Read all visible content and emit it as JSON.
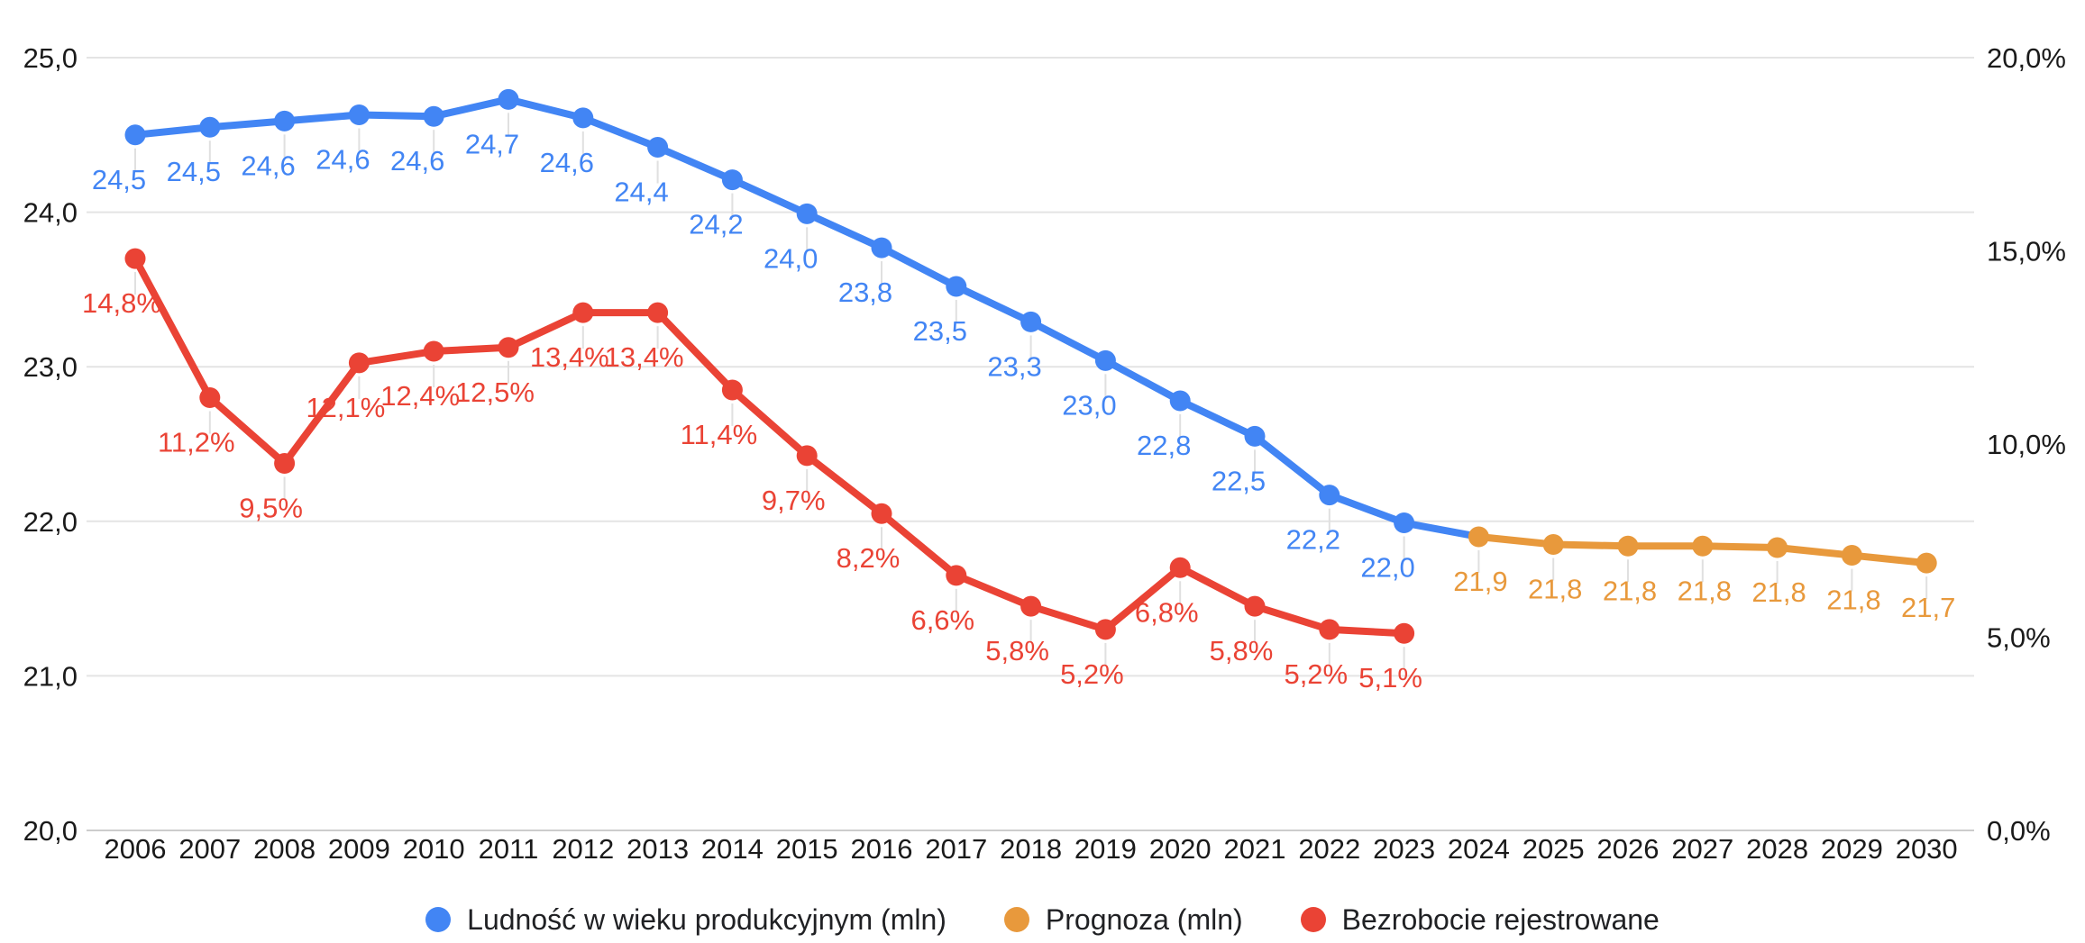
{
  "chart_data": {
    "type": "line",
    "title": "",
    "x_categories": [
      2006,
      2007,
      2008,
      2009,
      2010,
      2011,
      2012,
      2013,
      2014,
      2015,
      2016,
      2017,
      2018,
      2019,
      2020,
      2021,
      2022,
      2023,
      2024,
      2025,
      2026,
      2027,
      2028,
      2029,
      2030
    ],
    "axes": {
      "left": {
        "min": 20,
        "max": 25,
        "tick_values": [
          25,
          24,
          23,
          22,
          21,
          20
        ],
        "tick_labels": [
          "25,0",
          "24,0",
          "23,0",
          "22,0",
          "21,0",
          "20,0"
        ]
      },
      "right": {
        "min": 0,
        "max": 20,
        "tick_values": [
          20,
          15,
          10,
          5,
          0
        ],
        "tick_labels": [
          "20,0%",
          "15,0%",
          "10,0%",
          "5,0%",
          "0,0%"
        ]
      }
    },
    "grid": {
      "horizontal": true,
      "vertical": false
    },
    "legend_position": "bottom",
    "series": [
      {
        "id": "ludnosc",
        "name": "Ludność w wieku produkcyjnym (mln)",
        "color": "#4285F4",
        "axis": "left",
        "start_year": 2006,
        "values": [
          24.5,
          24.5,
          24.6,
          24.6,
          24.6,
          24.7,
          24.6,
          24.4,
          24.2,
          24.0,
          23.8,
          23.5,
          23.3,
          23.0,
          22.8,
          22.5,
          22.2,
          22.0
        ],
        "values_precise": [
          24.5,
          24.55,
          24.59,
          24.63,
          24.62,
          24.73,
          24.61,
          24.42,
          24.21,
          23.99,
          23.77,
          23.52,
          23.29,
          23.04,
          22.78,
          22.55,
          22.17,
          21.99
        ],
        "labels": [
          "24,5",
          "24,5",
          "24,6",
          "24,6",
          "24,6",
          "24,7",
          "24,6",
          "24,4",
          "24,2",
          "24,0",
          "23,8",
          "23,5",
          "23,3",
          "23,0",
          "22,8",
          "22,5",
          "22,2",
          "22,0"
        ],
        "connects_to_next_series": true
      },
      {
        "id": "prognoza",
        "name": "Prognoza (mln)",
        "color": "#E8993C",
        "axis": "left",
        "start_year": 2024,
        "values": [
          21.9,
          21.8,
          21.8,
          21.8,
          21.8,
          21.8,
          21.7
        ],
        "values_precise": [
          21.9,
          21.85,
          21.84,
          21.84,
          21.83,
          21.78,
          21.73
        ],
        "labels": [
          "21,9",
          "21,8",
          "21,8",
          "21,8",
          "21,8",
          "21,8",
          "21,7"
        ]
      },
      {
        "id": "bezrobocie",
        "name": "Bezrobocie rejestrowane",
        "color": "#EA4335",
        "axis": "right",
        "start_year": 2006,
        "values": [
          14.8,
          11.2,
          9.5,
          12.1,
          12.4,
          12.5,
          13.4,
          13.4,
          11.4,
          9.7,
          8.2,
          6.6,
          5.8,
          5.2,
          6.8,
          5.8,
          5.2,
          5.1
        ],
        "labels": [
          "14,8%",
          "11,2%",
          "9,5%",
          "12,1%",
          "12,4%",
          "12,5%",
          "13,4%",
          "13,4%",
          "11,4%",
          "9,7%",
          "8,2%",
          "6,6%",
          "5,8%",
          "5,2%",
          "6,8%",
          "5,8%",
          "5,2%",
          "5,1%"
        ]
      }
    ],
    "colors": {
      "gridline": "#E4E4E4",
      "baseline": "#CCCCCC",
      "leader_line": "#E0E0E0",
      "axis_text": "#1a1a1a",
      "legend_text": "#202124",
      "background": "#FFFFFF"
    }
  }
}
